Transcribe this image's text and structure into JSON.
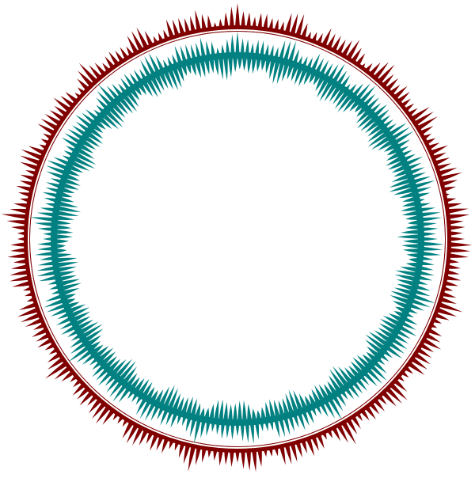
{
  "figure": {
    "description_free": true,
    "rings": [
      {
        "name": "outer-ring",
        "color": "#800000",
        "spike_count": 240,
        "pattern": "wavy-spikes"
      },
      {
        "name": "inner-ring",
        "color": "#008080",
        "spike_count": 240,
        "pattern": "wavy-spikes"
      }
    ],
    "background": "#ffffff",
    "separator_color": "#ffffff"
  }
}
